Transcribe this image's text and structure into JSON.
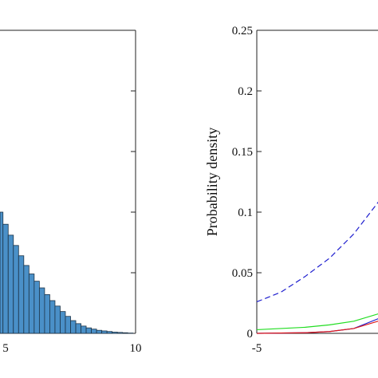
{
  "chart_data": [
    {
      "type": "bar",
      "xlabel": "",
      "ylabel": "",
      "xlim": [
        0,
        10
      ],
      "x_tick_labels": [
        "5",
        "10"
      ],
      "bar_color": "#4a90c8",
      "bar_edge": "#1c3347",
      "bins": [
        {
          "x": 4.2,
          "value": 0.18
        },
        {
          "x": 4.4,
          "value": 0.19
        },
        {
          "x": 4.6,
          "value": 0.195
        },
        {
          "x": 4.8,
          "value": 0.2
        },
        {
          "x": 5.0,
          "value": 0.18
        },
        {
          "x": 5.2,
          "value": 0.162
        },
        {
          "x": 5.4,
          "value": 0.145
        },
        {
          "x": 5.6,
          "value": 0.128
        },
        {
          "x": 5.8,
          "value": 0.112
        },
        {
          "x": 6.0,
          "value": 0.098
        },
        {
          "x": 6.2,
          "value": 0.086
        },
        {
          "x": 6.4,
          "value": 0.075
        },
        {
          "x": 6.6,
          "value": 0.064
        },
        {
          "x": 6.8,
          "value": 0.054
        },
        {
          "x": 7.0,
          "value": 0.045
        },
        {
          "x": 7.2,
          "value": 0.036
        },
        {
          "x": 7.4,
          "value": 0.028
        },
        {
          "x": 7.6,
          "value": 0.021
        },
        {
          "x": 7.8,
          "value": 0.016
        },
        {
          "x": 8.0,
          "value": 0.012
        },
        {
          "x": 8.2,
          "value": 0.009
        },
        {
          "x": 8.4,
          "value": 0.007
        },
        {
          "x": 8.6,
          "value": 0.005
        },
        {
          "x": 8.8,
          "value": 0.004
        },
        {
          "x": 9.0,
          "value": 0.003
        },
        {
          "x": 9.2,
          "value": 0.002
        },
        {
          "x": 9.4,
          "value": 0.0015
        },
        {
          "x": 9.6,
          "value": 0.001
        },
        {
          "x": 9.8,
          "value": 0.0005
        }
      ],
      "ylim": [
        0,
        0.5
      ]
    },
    {
      "type": "line",
      "xlabel": "",
      "ylabel": "Probability density",
      "xlim": [
        -5,
        0
      ],
      "ylim": [
        0,
        0.25
      ],
      "x_tick_labels": [
        "-5"
      ],
      "y_ticks": [
        0,
        0.05,
        0.1,
        0.15,
        0.2,
        0.25
      ],
      "y_tick_labels": [
        "0",
        "0.05",
        "0.1",
        "0.15",
        "0.2",
        "0.25"
      ],
      "series": [
        {
          "style": "dashed",
          "color": "#1f1fcf",
          "x": [
            -5.0,
            -4.5,
            -4.0,
            -3.5,
            -3.0,
            -2.5,
            -2.2,
            -2.0,
            -1.8,
            -1.6
          ],
          "y": [
            0.026,
            0.034,
            0.047,
            0.062,
            0.082,
            0.108,
            0.126,
            0.138,
            0.146,
            0.15
          ]
        },
        {
          "style": "solid",
          "color": "#1f1fcf",
          "x": [
            -5.0,
            -4.0,
            -3.5,
            -3.0,
            -2.5,
            -2.2,
            -2.0,
            -1.9,
            -1.8,
            -1.7,
            -1.65
          ],
          "y": [
            0.0,
            0.0005,
            0.0015,
            0.004,
            0.012,
            0.024,
            0.038,
            0.048,
            0.06,
            0.075,
            0.085
          ]
        },
        {
          "style": "solid",
          "color": "#22dd22",
          "x": [
            -5.0,
            -4.0,
            -3.5,
            -3.0,
            -2.5,
            -2.2,
            -2.0,
            -1.8,
            -1.6
          ],
          "y": [
            0.003,
            0.005,
            0.007,
            0.01,
            0.016,
            0.022,
            0.028,
            0.034,
            0.038
          ]
        },
        {
          "style": "solid",
          "color": "#e01818",
          "x": [
            -5.0,
            -4.0,
            -3.5,
            -3.0,
            -2.5,
            -2.2,
            -2.0,
            -1.8,
            -1.6
          ],
          "y": [
            0.0,
            0.0005,
            0.0015,
            0.004,
            0.01,
            0.017,
            0.023,
            0.028,
            0.032
          ]
        }
      ]
    }
  ]
}
